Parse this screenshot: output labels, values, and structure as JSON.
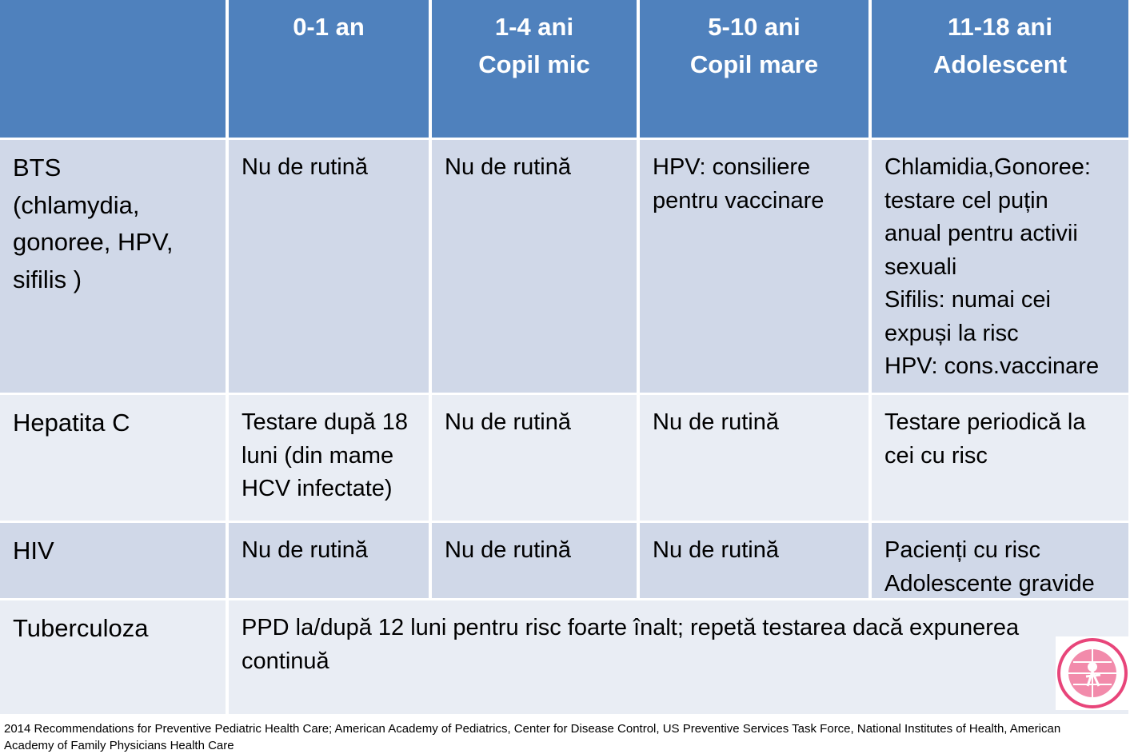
{
  "table": {
    "header": [
      [
        "0-1 an"
      ],
      [
        "1-4 ani",
        "Copil mic"
      ],
      [
        "5-10  ani",
        "Copil mare"
      ],
      [
        "11-18 ani",
        "Adolescent"
      ]
    ],
    "rows": [
      {
        "label": [
          "BTS",
          "(chlamydia,",
          "gonoree, HPV,",
          "sifilis )"
        ],
        "cells": [
          [
            "Nu de rutină"
          ],
          [
            "Nu de rutină"
          ],
          [
            "HPV: consiliere",
            "pentru vaccinare"
          ],
          [
            "Chlamidia,Gonoree:",
            "testare cel puțin",
            "anual pentru activii",
            "sexuali",
            "Sifilis: numai cei",
            "expuși la risc",
            "HPV: cons.vaccinare"
          ]
        ]
      },
      {
        "label": [
          "Hepatita C"
        ],
        "cells": [
          [
            "Testare după 18",
            "luni (din mame",
            "HCV infectate)"
          ],
          [
            "Nu de rutină"
          ],
          [
            "Nu de rutină"
          ],
          [
            "Testare periodică la",
            "cei cu risc"
          ]
        ]
      },
      {
        "label": [
          "HIV"
        ],
        "cells": [
          [
            "Nu de rutină"
          ],
          [
            "Nu de rutină"
          ],
          [
            "Nu de rutină"
          ],
          [
            "Pacienți cu risc",
            "Adolescente gravide"
          ]
        ]
      },
      {
        "label": [
          "Tuberculoza"
        ],
        "cells": [
          [
            "PPD la/după 12 luni pentru risc foarte înalt; repetă testarea dacă expunerea",
            "continuă"
          ]
        ]
      }
    ]
  },
  "footer": [
    "2014 Recommendations for Preventive Pediatric Health Care; American Academy of Pediatrics, Center for Disease Control, US Preventive Services Task Force, National Institutes of Health, American",
    "Academy of Family Physicians  Health Care"
  ]
}
